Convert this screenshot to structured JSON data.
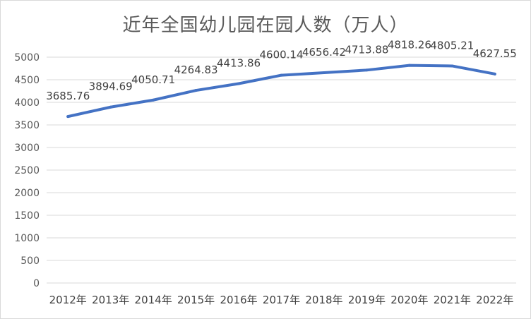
{
  "title": "近年全国幼儿园在园人数（万人）",
  "chart_data": {
    "type": "line",
    "title": "近年全国幼儿园在园人数（万人）",
    "xlabel": "",
    "ylabel": "",
    "categories": [
      "2012年",
      "2013年",
      "2014年",
      "2015年",
      "2016年",
      "2017年",
      "2018年",
      "2019年",
      "2020年",
      "2021年",
      "2022年"
    ],
    "series": [
      {
        "name": "",
        "values": [
          3685.76,
          3894.69,
          4050.71,
          4264.83,
          4413.86,
          4600.14,
          4656.42,
          4713.88,
          4818.26,
          4805.21,
          4627.55
        ],
        "labels": [
          "3685.76",
          "3894.69",
          "4050.71",
          "4264.83",
          "4413.86",
          "4600.14",
          "4656.42",
          "4713.88",
          "4818.26",
          "4805.21",
          "4627.55"
        ]
      }
    ],
    "ylim": [
      0,
      5000
    ],
    "yticks": [
      0,
      500,
      1000,
      1500,
      2000,
      2500,
      3000,
      3500,
      4000,
      4500,
      5000
    ],
    "grid": true,
    "legend": "none",
    "line_color": "#4472c4",
    "grid_color": "#d9d9d9"
  }
}
